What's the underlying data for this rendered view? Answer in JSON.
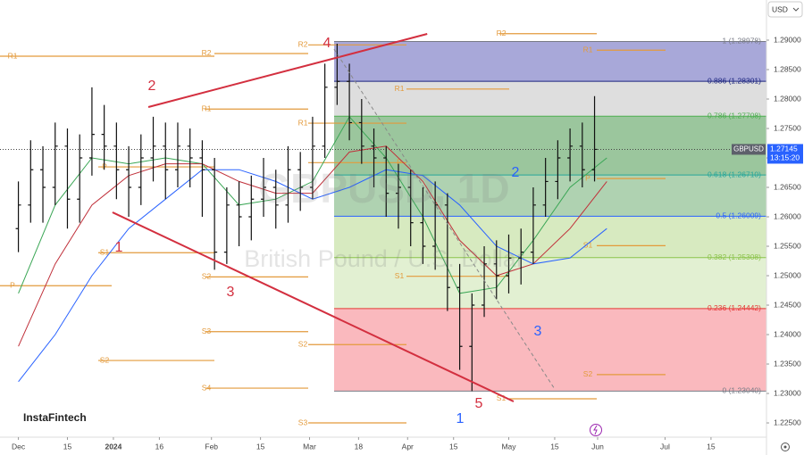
{
  "chart_data": {
    "type": "ohlc",
    "title": "GBPUSD, 1D",
    "subtitle": "British Pound / U.S. Dollar",
    "symbol": "GBPUSD",
    "currency": "USD",
    "logo": "InstaFintech",
    "last_price": 1.27145,
    "countdown": "13:15:20",
    "bar_color": "#111111",
    "xlim": [
      -6,
      244.1
    ],
    "ylim": [
      1.22258,
      1.29682
    ],
    "yticks": [
      {
        "value": 1.225,
        "label": "1.22500"
      },
      {
        "value": 1.23,
        "label": "1.23000"
      },
      {
        "value": 1.235,
        "label": "1.23500"
      },
      {
        "value": 1.24,
        "label": "1.24000"
      },
      {
        "value": 1.245,
        "label": "1.24500"
      },
      {
        "value": 1.25,
        "label": "1.25000"
      },
      {
        "value": 1.255,
        "label": "1.25500"
      },
      {
        "value": 1.26,
        "label": "1.26000"
      },
      {
        "value": 1.265,
        "label": "1.26500"
      },
      {
        "value": 1.27,
        "label": "1.27000"
      },
      {
        "value": 1.275,
        "label": "1.27500"
      },
      {
        "value": 1.28,
        "label": "1.28000"
      },
      {
        "value": 1.285,
        "label": "1.28500"
      },
      {
        "value": 1.29,
        "label": "1.29000"
      }
    ],
    "xticks": [
      {
        "value": 0,
        "label": "Dec"
      },
      {
        "value": 16,
        "label": "15"
      },
      {
        "value": 31,
        "label": "2024"
      },
      {
        "value": 46,
        "label": "16"
      },
      {
        "value": 63,
        "label": "Feb"
      },
      {
        "value": 79,
        "label": "15"
      },
      {
        "value": 95,
        "label": "Mar"
      },
      {
        "value": 111,
        "label": "18"
      },
      {
        "value": 127,
        "label": "Apr"
      },
      {
        "value": 142,
        "label": "15"
      },
      {
        "value": 160,
        "label": "May"
      },
      {
        "value": 175,
        "label": "15"
      },
      {
        "value": 189,
        "label": "Jun"
      },
      {
        "value": 211,
        "label": "Jul"
      },
      {
        "value": 226,
        "label": "15"
      }
    ],
    "x": [
      0,
      4,
      8,
      12,
      16,
      20,
      24,
      28,
      32,
      36,
      40,
      44,
      48,
      52,
      56,
      60,
      64,
      68,
      72,
      76,
      80,
      84,
      88,
      92,
      96,
      100,
      104,
      108,
      112,
      116,
      120,
      124,
      128,
      132,
      136,
      140,
      144,
      148,
      152,
      156,
      160,
      164,
      168,
      172,
      176,
      180,
      184,
      188
    ],
    "open": [
      1.258,
      1.262,
      1.268,
      1.265,
      1.272,
      1.263,
      1.27,
      1.274,
      1.272,
      1.268,
      1.265,
      1.27,
      1.272,
      1.268,
      1.272,
      1.27,
      1.268,
      1.254,
      1.262,
      1.26,
      1.263,
      1.265,
      1.262,
      1.268,
      1.265,
      1.272,
      1.282,
      1.283,
      1.276,
      1.272,
      1.27,
      1.264,
      1.265,
      1.259,
      1.255,
      1.262,
      1.248,
      1.238,
      1.245,
      1.252,
      1.25,
      1.253,
      1.254,
      1.262,
      1.266,
      1.27,
      1.272,
      1.268
    ],
    "high": [
      1.266,
      1.273,
      1.272,
      1.276,
      1.275,
      1.274,
      1.282,
      1.279,
      1.276,
      1.272,
      1.274,
      1.277,
      1.276,
      1.276,
      1.275,
      1.273,
      1.27,
      1.265,
      1.266,
      1.267,
      1.27,
      1.268,
      1.272,
      1.271,
      1.277,
      1.286,
      1.2894,
      1.286,
      1.28,
      1.275,
      1.272,
      1.269,
      1.268,
      1.265,
      1.266,
      1.264,
      1.252,
      1.247,
      1.255,
      1.256,
      1.257,
      1.258,
      1.265,
      1.27,
      1.273,
      1.275,
      1.276,
      1.2805
    ],
    "low": [
      1.254,
      1.259,
      1.259,
      1.262,
      1.258,
      1.259,
      1.267,
      1.268,
      1.263,
      1.26,
      1.262,
      1.266,
      1.263,
      1.265,
      1.265,
      1.26,
      1.251,
      1.252,
      1.255,
      1.256,
      1.26,
      1.258,
      1.259,
      1.261,
      1.263,
      1.27,
      1.279,
      1.273,
      1.269,
      1.265,
      1.26,
      1.258,
      1.255,
      1.252,
      1.251,
      1.244,
      1.234,
      1.2304,
      1.243,
      1.246,
      1.247,
      1.2485,
      1.252,
      1.26,
      1.263,
      1.266,
      1.265,
      1.266
    ],
    "close": [
      1.262,
      1.268,
      1.265,
      1.272,
      1.263,
      1.27,
      1.274,
      1.272,
      1.268,
      1.265,
      1.27,
      1.272,
      1.268,
      1.272,
      1.27,
      1.268,
      1.254,
      1.262,
      1.26,
      1.263,
      1.265,
      1.262,
      1.268,
      1.265,
      1.272,
      1.282,
      1.283,
      1.276,
      1.272,
      1.27,
      1.264,
      1.265,
      1.259,
      1.255,
      1.262,
      1.248,
      1.238,
      1.245,
      1.252,
      1.25,
      1.253,
      1.254,
      1.262,
      1.266,
      1.27,
      1.272,
      1.268,
      1.27145
    ],
    "moving_averages": [
      {
        "color": "#3aa655",
        "x": [
          0,
          12,
          24,
          36,
          48,
          60,
          72,
          84,
          96,
          108,
          120,
          132,
          144,
          156,
          168,
          180,
          192
        ],
        "values": [
          1.247,
          1.262,
          1.27,
          1.269,
          1.27,
          1.269,
          1.262,
          1.263,
          1.266,
          1.277,
          1.27,
          1.26,
          1.247,
          1.248,
          1.256,
          1.265,
          1.27
        ]
      },
      {
        "color": "#c0303a",
        "x": [
          0,
          12,
          24,
          36,
          48,
          60,
          72,
          84,
          96,
          108,
          120,
          132,
          144,
          156,
          168,
          180,
          192
        ],
        "values": [
          1.238,
          1.252,
          1.262,
          1.267,
          1.269,
          1.269,
          1.266,
          1.264,
          1.264,
          1.271,
          1.272,
          1.266,
          1.256,
          1.25,
          1.252,
          1.258,
          1.266
        ]
      },
      {
        "color": "#2962ff",
        "x": [
          0,
          12,
          24,
          36,
          48,
          60,
          72,
          84,
          96,
          108,
          120,
          132,
          144,
          156,
          168,
          180,
          192
        ],
        "values": [
          1.232,
          1.24,
          1.25,
          1.258,
          1.263,
          1.268,
          1.268,
          1.266,
          1.263,
          1.265,
          1.268,
          1.267,
          1.262,
          1.255,
          1.252,
          1.253,
          1.258
        ]
      }
    ],
    "fib": {
      "levels": [
        {
          "value": 1.2304,
          "label": "0 (1.23040)",
          "color": "#787b86"
        },
        {
          "value": 1.24442,
          "label": "0.236 (1.24442)",
          "color": "#e53935"
        },
        {
          "value": 1.25308,
          "label": "0.382 (1.25308)",
          "color": "#8bc34a"
        },
        {
          "value": 1.26009,
          "label": "0.5 (1.26009)",
          "color": "#2962ff"
        },
        {
          "value": 1.2671,
          "label": "0.618 (1.26710)",
          "color": "#26a69a"
        },
        {
          "value": 1.27708,
          "label": "0.786 (1.27708)",
          "color": "#4caf50"
        },
        {
          "value": 1.28301,
          "label": "0.886 (1.28301)",
          "color": "#1a237e"
        },
        {
          "value": 1.28978,
          "label": "1 (1.28978)",
          "color": "#787b86"
        }
      ],
      "band_colors": [
        "rgba(242,54,69,0.35)",
        "rgba(139,195,74,0.25)",
        "rgba(139,195,74,0.35)",
        "rgba(56,142,60,0.4)",
        "rgba(56,142,60,0.5)",
        "rgba(160,160,160,0.35)",
        "rgba(63,61,170,0.45)"
      ]
    },
    "pivot_color": "#e39a3b",
    "pivots": [
      {
        "label": "R1",
        "value": 1.28727
      },
      {
        "label": "R2",
        "value": 1.28773
      },
      {
        "label": "P",
        "value": 1.26848
      },
      {
        "label": "S1",
        "value": 1.2539
      },
      {
        "label": "S2",
        "value": 1.2498
      },
      {
        "label": "S3",
        "value": 1.2405
      },
      {
        "label": "S2",
        "value": 1.2356
      },
      {
        "label": "S4",
        "value": 1.2309
      },
      {
        "label": "R1",
        "value": 1.2783
      },
      {
        "label": "R2",
        "value": 1.2892
      },
      {
        "label": "R1",
        "value": 1.2759
      },
      {
        "label": "P",
        "value": 1.2692
      },
      {
        "label": "S2",
        "value": 1.2383
      },
      {
        "label": "S3",
        "value": 1.225
      },
      {
        "label": "R2",
        "value": 1.2911
      },
      {
        "label": "R1",
        "value": 1.2817
      },
      {
        "label": "R1",
        "value": 1.2883
      },
      {
        "label": "P",
        "value": 1.2665
      },
      {
        "label": "S1",
        "value": 1.2551
      },
      {
        "label": "S2",
        "value": 1.2332
      },
      {
        "label": "S1",
        "value": 1.2499
      },
      {
        "label": "S1",
        "value": 1.2291
      },
      {
        "label": "P",
        "value": 1.2483
      }
    ],
    "trendlines": [
      {
        "color": "#d32f3f",
        "x": [
          42.4,
          133.4
        ],
        "values": [
          1.27864,
          1.29106
        ]
      },
      {
        "color": "#d32f3f",
        "x": [
          30.7,
          161.6
        ],
        "values": [
          1.26076,
          1.22864
        ]
      },
      {
        "color": "#888888",
        "x": [
          103,
          174.8
        ],
        "values": [
          1.28848,
          1.23091
        ]
      }
    ],
    "wave_labels": [
      {
        "text": "1",
        "color": "#d32f3f"
      },
      {
        "text": "2",
        "color": "#d32f3f"
      },
      {
        "text": "3",
        "color": "#d32f3f"
      },
      {
        "text": "4",
        "color": "#d32f3f"
      },
      {
        "text": "5",
        "color": "#d32f3f"
      },
      {
        "text": "1",
        "color": "#2962ff"
      },
      {
        "text": "2",
        "color": "#2962ff"
      },
      {
        "text": "3",
        "color": "#2962ff"
      }
    ]
  }
}
